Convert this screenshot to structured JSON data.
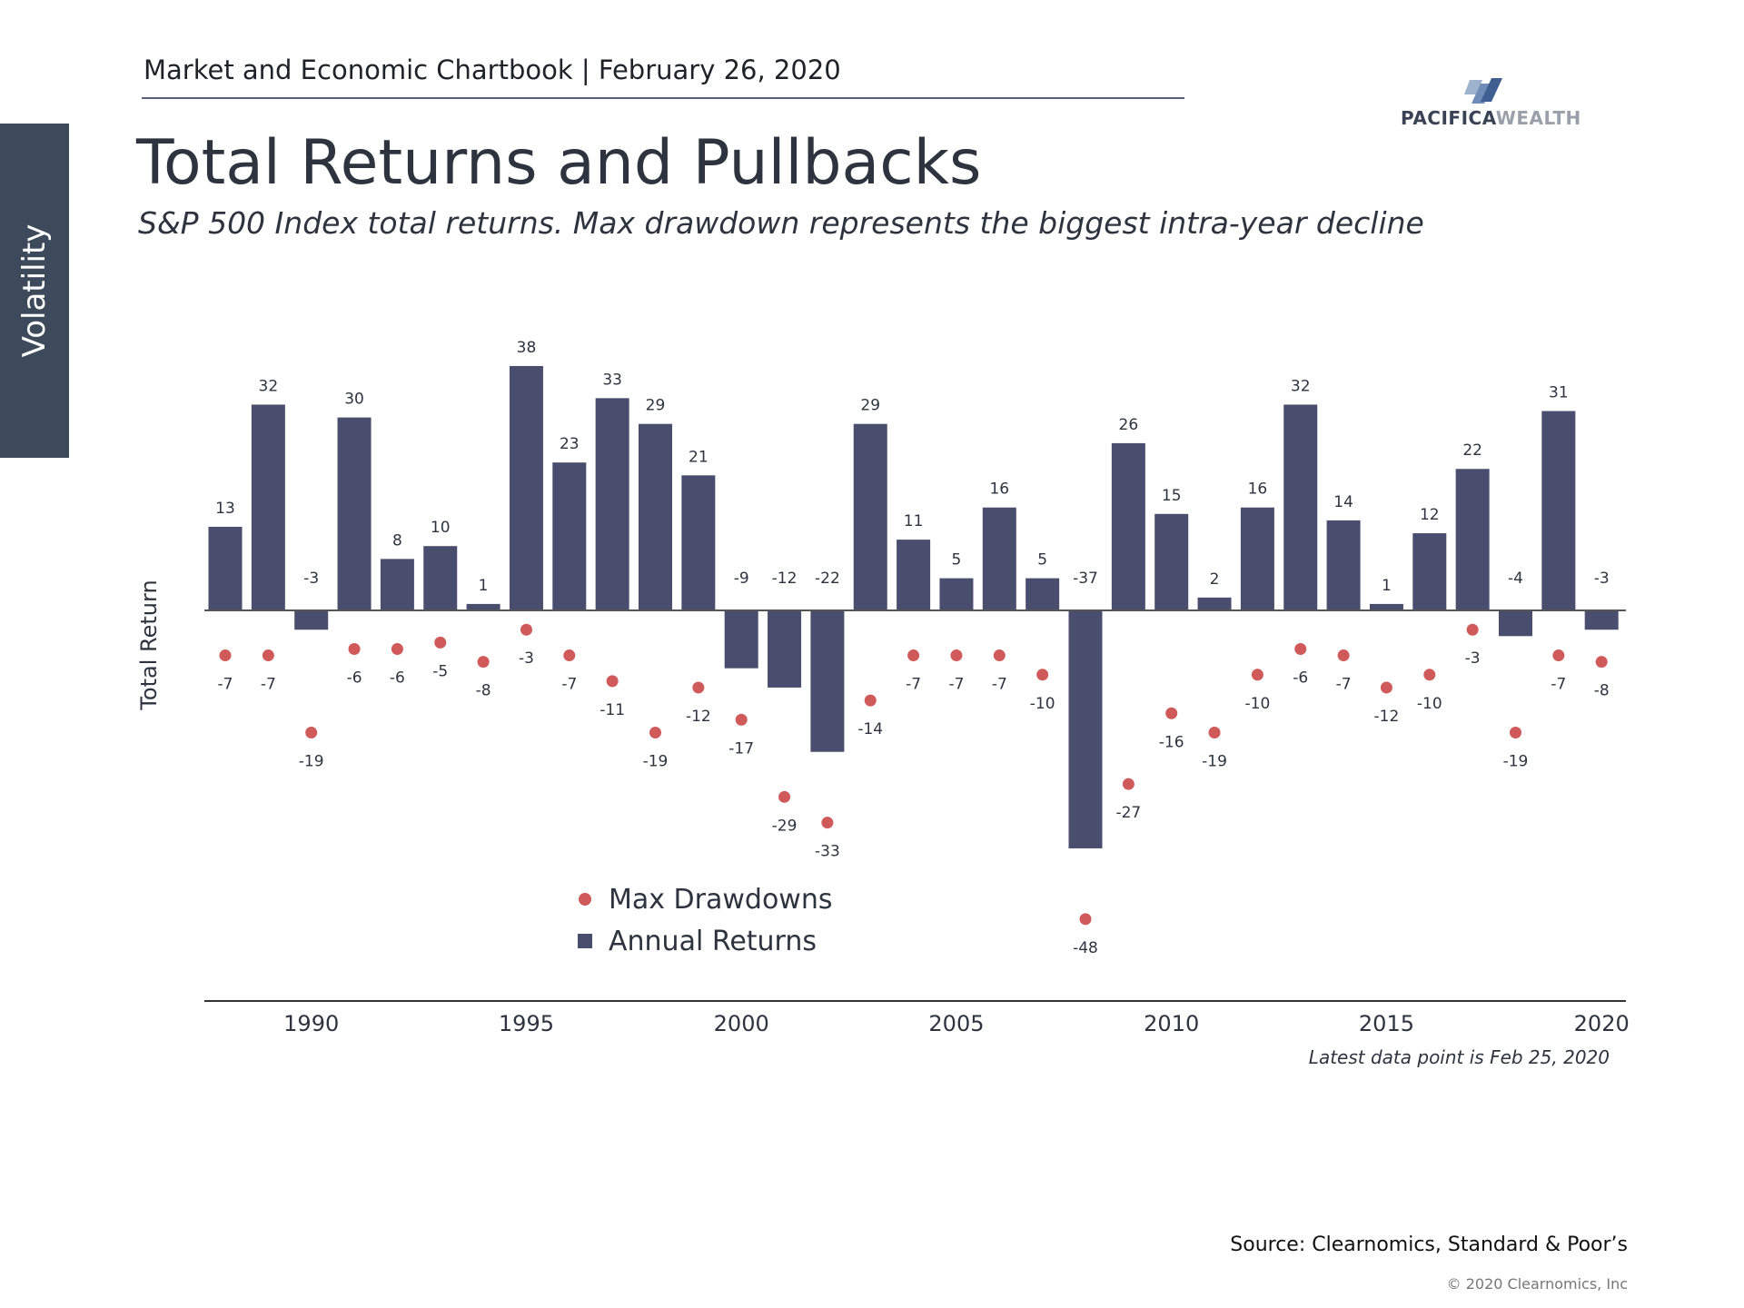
{
  "header": {
    "text": "Market and Economic Chartbook | February 26, 2020",
    "side_tab": "Volatility",
    "logo_text_dark": "PACIFICA",
    "logo_text_light": "WEALTH"
  },
  "title": "Total Returns and Pullbacks",
  "subtitle": "S&P 500 Index total returns. Max drawdown represents the biggest intra-year decline",
  "note": "Latest data point is Feb 25, 2020",
  "source": "Source: Clearnomics, Standard & Poor’s",
  "copyright": "© 2020 Clearnomics, Inc",
  "colors": {
    "bar": "#4a4e6e",
    "drawdown": "#d05a5a",
    "text": "#2d3440",
    "side_tab": "#3d4a5c"
  },
  "chart_data": {
    "type": "bar",
    "ylabel": "Total Return",
    "x": [
      1988,
      1989,
      1990,
      1991,
      1992,
      1993,
      1994,
      1995,
      1996,
      1997,
      1998,
      1999,
      2000,
      2001,
      2002,
      2003,
      2004,
      2005,
      2006,
      2007,
      2008,
      2009,
      2010,
      2011,
      2012,
      2013,
      2014,
      2015,
      2016,
      2017,
      2018,
      2019,
      2020
    ],
    "x_ticks": [
      "1990",
      "1995",
      "2000",
      "2005",
      "2010",
      "2015",
      "2020"
    ],
    "series": [
      {
        "name": "Annual Returns",
        "mark": "bar",
        "values": [
          13,
          32,
          -3,
          30,
          8,
          10,
          1,
          38,
          23,
          33,
          29,
          21,
          -9,
          -12,
          -22,
          29,
          11,
          5,
          16,
          5,
          -37,
          26,
          15,
          2,
          16,
          32,
          14,
          1,
          12,
          22,
          -4,
          31,
          -3
        ]
      },
      {
        "name": "Max Drawdowns",
        "mark": "point",
        "values": [
          -7,
          -7,
          -19,
          -6,
          -6,
          -5,
          -8,
          -3,
          -7,
          -11,
          -19,
          -12,
          -17,
          -29,
          -33,
          -14,
          -7,
          -7,
          -7,
          -10,
          -48,
          -27,
          -16,
          -19,
          -10,
          -6,
          -7,
          -12,
          -10,
          -3,
          -19,
          -7,
          -8
        ]
      }
    ],
    "legend": [
      "Max Drawdowns",
      "Annual Returns"
    ]
  }
}
